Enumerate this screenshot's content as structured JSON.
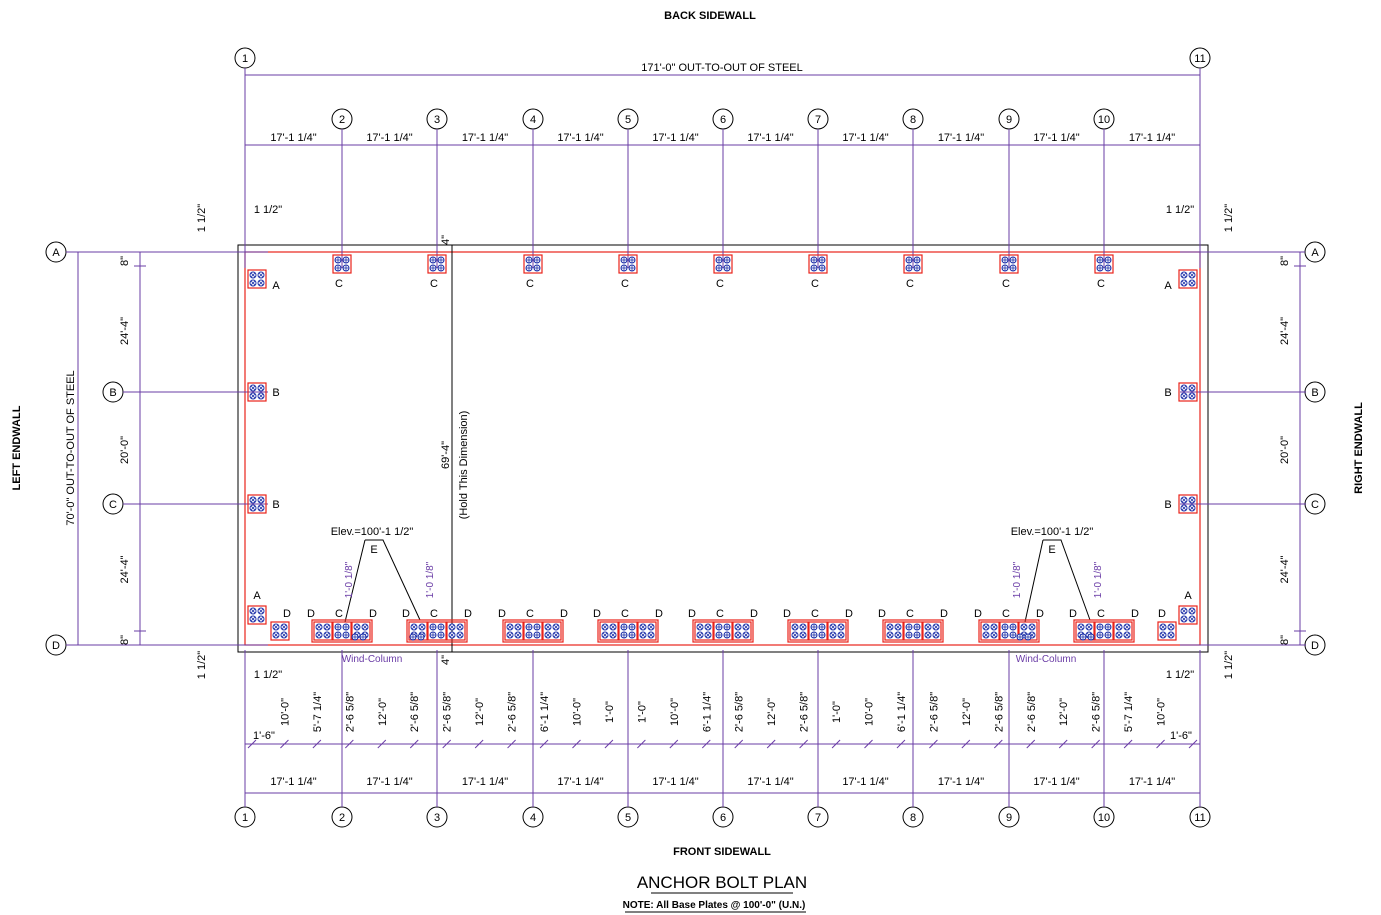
{
  "labels": {
    "back_sidewall": "BACK SIDEWALL",
    "front_sidewall": "FRONT SIDEWALL",
    "left_endwall": "LEFT ENDWALL",
    "right_endwall": "RIGHT ENDWALL",
    "overall_length": "171'-0\" OUT-TO-OUT OF STEEL",
    "overall_width": "70'-0\" OUT-TO-OUT OF STEEL",
    "hold_dim_value": "69'-4\"",
    "hold_dim_note": "(Hold This Dimension)",
    "wind_column": "Wind-Column",
    "elev_note": "Elev.=100'-1 1/2\"",
    "elev_tag": "E",
    "inset_1_1_2": "1 1/2\"",
    "inset_4": "4\"",
    "gap_1_8": "1'-0 1/8\"",
    "title": "ANCHOR BOLT PLAN",
    "note": "NOTE: All Base Plates @ 100'-0\" (U.N.)"
  },
  "grid_columns": [
    "1",
    "2",
    "3",
    "4",
    "5",
    "6",
    "7",
    "8",
    "9",
    "10",
    "11"
  ],
  "grid_rows": [
    "A",
    "B",
    "C",
    "D"
  ],
  "bay_spacing": "17'-1 1/4\"",
  "endwall_dims": [
    "8\"",
    "24'-4\"",
    "20'-0\"",
    "24'-4\"",
    "8\""
  ],
  "plate_tags": {
    "A": "A",
    "B": "B",
    "C": "C",
    "D": "D"
  },
  "front_sub_dims": [
    "1'-6\"",
    "10'-0\"",
    "5'-7 1/4\"",
    "2'-6 5/8\"",
    "12'-0\"",
    "2'-6 5/8\"",
    "2'-6 5/8\"",
    "12'-0\"",
    "2'-6 5/8\"",
    "6'-1 1/4\"",
    "10'-0\"",
    "1'-0\"",
    "1'-0\"",
    "10'-0\"",
    "6'-1 1/4\"",
    "2'-6 5/8\"",
    "12'-0\"",
    "2'-6 5/8\"",
    "1'-0\"",
    "10'-0\"",
    "6'-1 1/4\"",
    "2'-6 5/8\"",
    "12'-0\"",
    "2'-6 5/8\"",
    "2'-6 5/8\"",
    "12'-0\"",
    "2'-6 5/8\"",
    "5'-7 1/4\"",
    "10'-0\"",
    "1'-6\""
  ],
  "colors": {
    "dimension": "#6a3ca6",
    "plate_outline": "#e8231a",
    "bolt": "#1c2fa8",
    "line": "#000000"
  }
}
